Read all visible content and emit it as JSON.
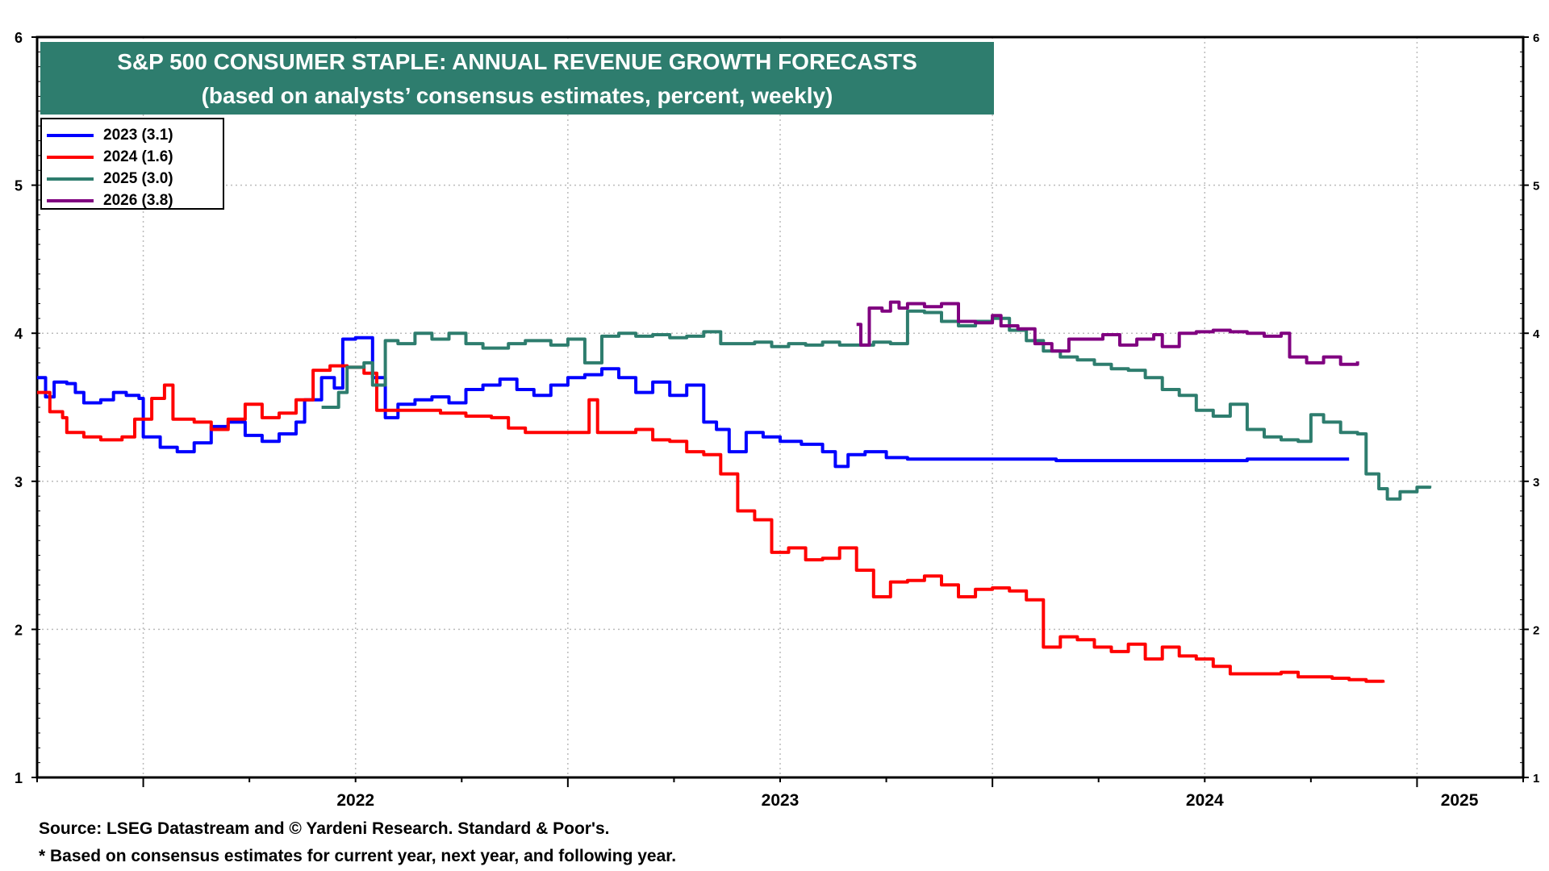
{
  "title": {
    "line1": "S&P 500 CONSUMER STAPLE: ANNUAL REVENUE GROWTH FORECASTS",
    "line2": "(based on analysts’ consensus estimates, percent, weekly)"
  },
  "footer": {
    "source": "Source: LSEG Datastream and © Yardeni Research. Standard & Poor's.",
    "note": "* Based on consensus estimates for current year, next year, and following year."
  },
  "chart_data": {
    "type": "line",
    "grid": true,
    "legend_position": "top-left",
    "ylim": [
      1,
      6
    ],
    "xlim": [
      2021.75,
      2025.25
    ],
    "y_ticks": [
      "1",
      "2",
      "3",
      "4",
      "5",
      "6"
    ],
    "x_tick_labels": [
      "2022",
      "2023",
      "2024",
      "2025"
    ],
    "series": [
      {
        "name": "2023 (3.1)",
        "color": "#0000ff",
        "points": [
          [
            2021.75,
            3.7
          ],
          [
            2021.77,
            3.57
          ],
          [
            2021.79,
            3.67
          ],
          [
            2021.82,
            3.66
          ],
          [
            2021.84,
            3.6
          ],
          [
            2021.86,
            3.53
          ],
          [
            2021.9,
            3.55
          ],
          [
            2021.93,
            3.6
          ],
          [
            2021.96,
            3.58
          ],
          [
            2021.99,
            3.56
          ],
          [
            2022.0,
            3.3
          ],
          [
            2022.04,
            3.23
          ],
          [
            2022.08,
            3.2
          ],
          [
            2022.12,
            3.26
          ],
          [
            2022.16,
            3.37
          ],
          [
            2022.2,
            3.4
          ],
          [
            2022.24,
            3.31
          ],
          [
            2022.28,
            3.27
          ],
          [
            2022.32,
            3.32
          ],
          [
            2022.36,
            3.4
          ],
          [
            2022.38,
            3.55
          ],
          [
            2022.42,
            3.7
          ],
          [
            2022.45,
            3.63
          ],
          [
            2022.47,
            3.96
          ],
          [
            2022.5,
            3.97
          ],
          [
            2022.54,
            3.7
          ],
          [
            2022.57,
            3.43
          ],
          [
            2022.6,
            3.52
          ],
          [
            2022.64,
            3.55
          ],
          [
            2022.68,
            3.57
          ],
          [
            2022.72,
            3.53
          ],
          [
            2022.76,
            3.62
          ],
          [
            2022.8,
            3.65
          ],
          [
            2022.84,
            3.69
          ],
          [
            2022.88,
            3.62
          ],
          [
            2022.92,
            3.58
          ],
          [
            2022.96,
            3.65
          ],
          [
            2023.0,
            3.7
          ],
          [
            2023.04,
            3.72
          ],
          [
            2023.08,
            3.76
          ],
          [
            2023.12,
            3.7
          ],
          [
            2023.16,
            3.6
          ],
          [
            2023.2,
            3.67
          ],
          [
            2023.24,
            3.58
          ],
          [
            2023.28,
            3.65
          ],
          [
            2023.32,
            3.4
          ],
          [
            2023.35,
            3.35
          ],
          [
            2023.38,
            3.2
          ],
          [
            2023.42,
            3.33
          ],
          [
            2023.46,
            3.3
          ],
          [
            2023.5,
            3.27
          ],
          [
            2023.55,
            3.25
          ],
          [
            2023.6,
            3.2
          ],
          [
            2023.63,
            3.1
          ],
          [
            2023.66,
            3.18
          ],
          [
            2023.7,
            3.2
          ],
          [
            2023.75,
            3.16
          ],
          [
            2023.8,
            3.15
          ],
          [
            2023.9,
            3.15
          ],
          [
            2024.0,
            3.15
          ],
          [
            2024.15,
            3.14
          ],
          [
            2024.3,
            3.14
          ],
          [
            2024.5,
            3.14
          ],
          [
            2024.6,
            3.15
          ],
          [
            2024.7,
            3.15
          ],
          [
            2024.84,
            3.15
          ]
        ]
      },
      {
        "name": "2024 (1.6)",
        "color": "#ff0000",
        "points": [
          [
            2021.75,
            3.6
          ],
          [
            2021.78,
            3.47
          ],
          [
            2021.81,
            3.43
          ],
          [
            2021.82,
            3.33
          ],
          [
            2021.86,
            3.3
          ],
          [
            2021.9,
            3.28
          ],
          [
            2021.95,
            3.3
          ],
          [
            2021.98,
            3.42
          ],
          [
            2022.02,
            3.56
          ],
          [
            2022.05,
            3.65
          ],
          [
            2022.07,
            3.42
          ],
          [
            2022.12,
            3.4
          ],
          [
            2022.16,
            3.35
          ],
          [
            2022.2,
            3.42
          ],
          [
            2022.24,
            3.52
          ],
          [
            2022.28,
            3.43
          ],
          [
            2022.32,
            3.46
          ],
          [
            2022.36,
            3.55
          ],
          [
            2022.4,
            3.75
          ],
          [
            2022.44,
            3.78
          ],
          [
            2022.48,
            3.77
          ],
          [
            2022.52,
            3.73
          ],
          [
            2022.55,
            3.48
          ],
          [
            2022.6,
            3.48
          ],
          [
            2022.64,
            3.48
          ],
          [
            2022.7,
            3.46
          ],
          [
            2022.76,
            3.44
          ],
          [
            2022.82,
            3.43
          ],
          [
            2022.86,
            3.36
          ],
          [
            2022.9,
            3.33
          ],
          [
            2022.96,
            3.33
          ],
          [
            2023.0,
            3.33
          ],
          [
            2023.05,
            3.55
          ],
          [
            2023.07,
            3.33
          ],
          [
            2023.12,
            3.33
          ],
          [
            2023.16,
            3.35
          ],
          [
            2023.2,
            3.28
          ],
          [
            2023.24,
            3.27
          ],
          [
            2023.28,
            3.2
          ],
          [
            2023.32,
            3.18
          ],
          [
            2023.36,
            3.05
          ],
          [
            2023.4,
            2.8
          ],
          [
            2023.44,
            2.74
          ],
          [
            2023.48,
            2.52
          ],
          [
            2023.52,
            2.55
          ],
          [
            2023.56,
            2.47
          ],
          [
            2023.6,
            2.48
          ],
          [
            2023.64,
            2.55
          ],
          [
            2023.68,
            2.4
          ],
          [
            2023.72,
            2.22
          ],
          [
            2023.76,
            2.32
          ],
          [
            2023.8,
            2.33
          ],
          [
            2023.84,
            2.36
          ],
          [
            2023.88,
            2.3
          ],
          [
            2023.92,
            2.22
          ],
          [
            2023.96,
            2.27
          ],
          [
            2024.0,
            2.28
          ],
          [
            2024.04,
            2.26
          ],
          [
            2024.08,
            2.2
          ],
          [
            2024.12,
            1.88
          ],
          [
            2024.16,
            1.95
          ],
          [
            2024.2,
            1.93
          ],
          [
            2024.24,
            1.88
          ],
          [
            2024.28,
            1.85
          ],
          [
            2024.32,
            1.9
          ],
          [
            2024.36,
            1.8
          ],
          [
            2024.4,
            1.88
          ],
          [
            2024.44,
            1.82
          ],
          [
            2024.48,
            1.8
          ],
          [
            2024.52,
            1.75
          ],
          [
            2024.56,
            1.7
          ],
          [
            2024.6,
            1.7
          ],
          [
            2024.64,
            1.7
          ],
          [
            2024.68,
            1.71
          ],
          [
            2024.72,
            1.68
          ],
          [
            2024.76,
            1.68
          ],
          [
            2024.8,
            1.67
          ],
          [
            2024.84,
            1.66
          ],
          [
            2024.88,
            1.65
          ],
          [
            2024.92,
            1.64
          ]
        ]
      },
      {
        "name": "2025 (3.0)",
        "color": "#2e7d6e",
        "points": [
          [
            2022.42,
            3.5
          ],
          [
            2022.46,
            3.6
          ],
          [
            2022.48,
            3.77
          ],
          [
            2022.52,
            3.8
          ],
          [
            2022.54,
            3.65
          ],
          [
            2022.57,
            3.95
          ],
          [
            2022.6,
            3.93
          ],
          [
            2022.64,
            4.0
          ],
          [
            2022.68,
            3.96
          ],
          [
            2022.72,
            4.0
          ],
          [
            2022.76,
            3.93
          ],
          [
            2022.8,
            3.9
          ],
          [
            2022.86,
            3.93
          ],
          [
            2022.9,
            3.95
          ],
          [
            2022.96,
            3.92
          ],
          [
            2023.0,
            3.96
          ],
          [
            2023.04,
            3.8
          ],
          [
            2023.08,
            3.98
          ],
          [
            2023.12,
            4.0
          ],
          [
            2023.16,
            3.98
          ],
          [
            2023.2,
            3.99
          ],
          [
            2023.24,
            3.97
          ],
          [
            2023.28,
            3.98
          ],
          [
            2023.32,
            4.01
          ],
          [
            2023.36,
            3.93
          ],
          [
            2023.4,
            3.93
          ],
          [
            2023.44,
            3.94
          ],
          [
            2023.48,
            3.91
          ],
          [
            2023.52,
            3.93
          ],
          [
            2023.56,
            3.92
          ],
          [
            2023.6,
            3.94
          ],
          [
            2023.64,
            3.92
          ],
          [
            2023.68,
            3.92
          ],
          [
            2023.72,
            3.94
          ],
          [
            2023.76,
            3.93
          ],
          [
            2023.8,
            4.15
          ],
          [
            2023.84,
            4.14
          ],
          [
            2023.88,
            4.08
          ],
          [
            2023.92,
            4.05
          ],
          [
            2023.96,
            4.08
          ],
          [
            2024.0,
            4.1
          ],
          [
            2024.04,
            4.02
          ],
          [
            2024.08,
            3.95
          ],
          [
            2024.12,
            3.88
          ],
          [
            2024.16,
            3.84
          ],
          [
            2024.2,
            3.82
          ],
          [
            2024.24,
            3.79
          ],
          [
            2024.28,
            3.76
          ],
          [
            2024.32,
            3.75
          ],
          [
            2024.36,
            3.7
          ],
          [
            2024.4,
            3.62
          ],
          [
            2024.44,
            3.58
          ],
          [
            2024.48,
            3.48
          ],
          [
            2024.52,
            3.44
          ],
          [
            2024.56,
            3.52
          ],
          [
            2024.6,
            3.35
          ],
          [
            2024.64,
            3.3
          ],
          [
            2024.68,
            3.28
          ],
          [
            2024.72,
            3.27
          ],
          [
            2024.75,
            3.45
          ],
          [
            2024.78,
            3.4
          ],
          [
            2024.82,
            3.33
          ],
          [
            2024.86,
            3.32
          ],
          [
            2024.88,
            3.05
          ],
          [
            2024.91,
            2.95
          ],
          [
            2024.93,
            2.88
          ],
          [
            2024.96,
            2.93
          ],
          [
            2025.0,
            2.96
          ],
          [
            2025.03,
            2.97
          ]
        ]
      },
      {
        "name": "2026 (3.8)",
        "color": "#800080",
        "points": [
          [
            2023.68,
            4.06
          ],
          [
            2023.69,
            3.92
          ],
          [
            2023.71,
            4.17
          ],
          [
            2023.74,
            4.15
          ],
          [
            2023.76,
            4.21
          ],
          [
            2023.78,
            4.17
          ],
          [
            2023.8,
            4.2
          ],
          [
            2023.84,
            4.18
          ],
          [
            2023.88,
            4.2
          ],
          [
            2023.92,
            4.08
          ],
          [
            2023.96,
            4.07
          ],
          [
            2024.0,
            4.12
          ],
          [
            2024.02,
            4.05
          ],
          [
            2024.06,
            4.03
          ],
          [
            2024.1,
            3.93
          ],
          [
            2024.14,
            3.88
          ],
          [
            2024.18,
            3.96
          ],
          [
            2024.22,
            3.96
          ],
          [
            2024.26,
            3.99
          ],
          [
            2024.3,
            3.92
          ],
          [
            2024.34,
            3.96
          ],
          [
            2024.38,
            3.99
          ],
          [
            2024.4,
            3.91
          ],
          [
            2024.44,
            4.0
          ],
          [
            2024.48,
            4.01
          ],
          [
            2024.52,
            4.02
          ],
          [
            2024.56,
            4.01
          ],
          [
            2024.6,
            4.0
          ],
          [
            2024.64,
            3.98
          ],
          [
            2024.68,
            4.0
          ],
          [
            2024.7,
            3.84
          ],
          [
            2024.74,
            3.8
          ],
          [
            2024.78,
            3.84
          ],
          [
            2024.82,
            3.79
          ],
          [
            2024.86,
            3.81
          ]
        ]
      }
    ]
  }
}
